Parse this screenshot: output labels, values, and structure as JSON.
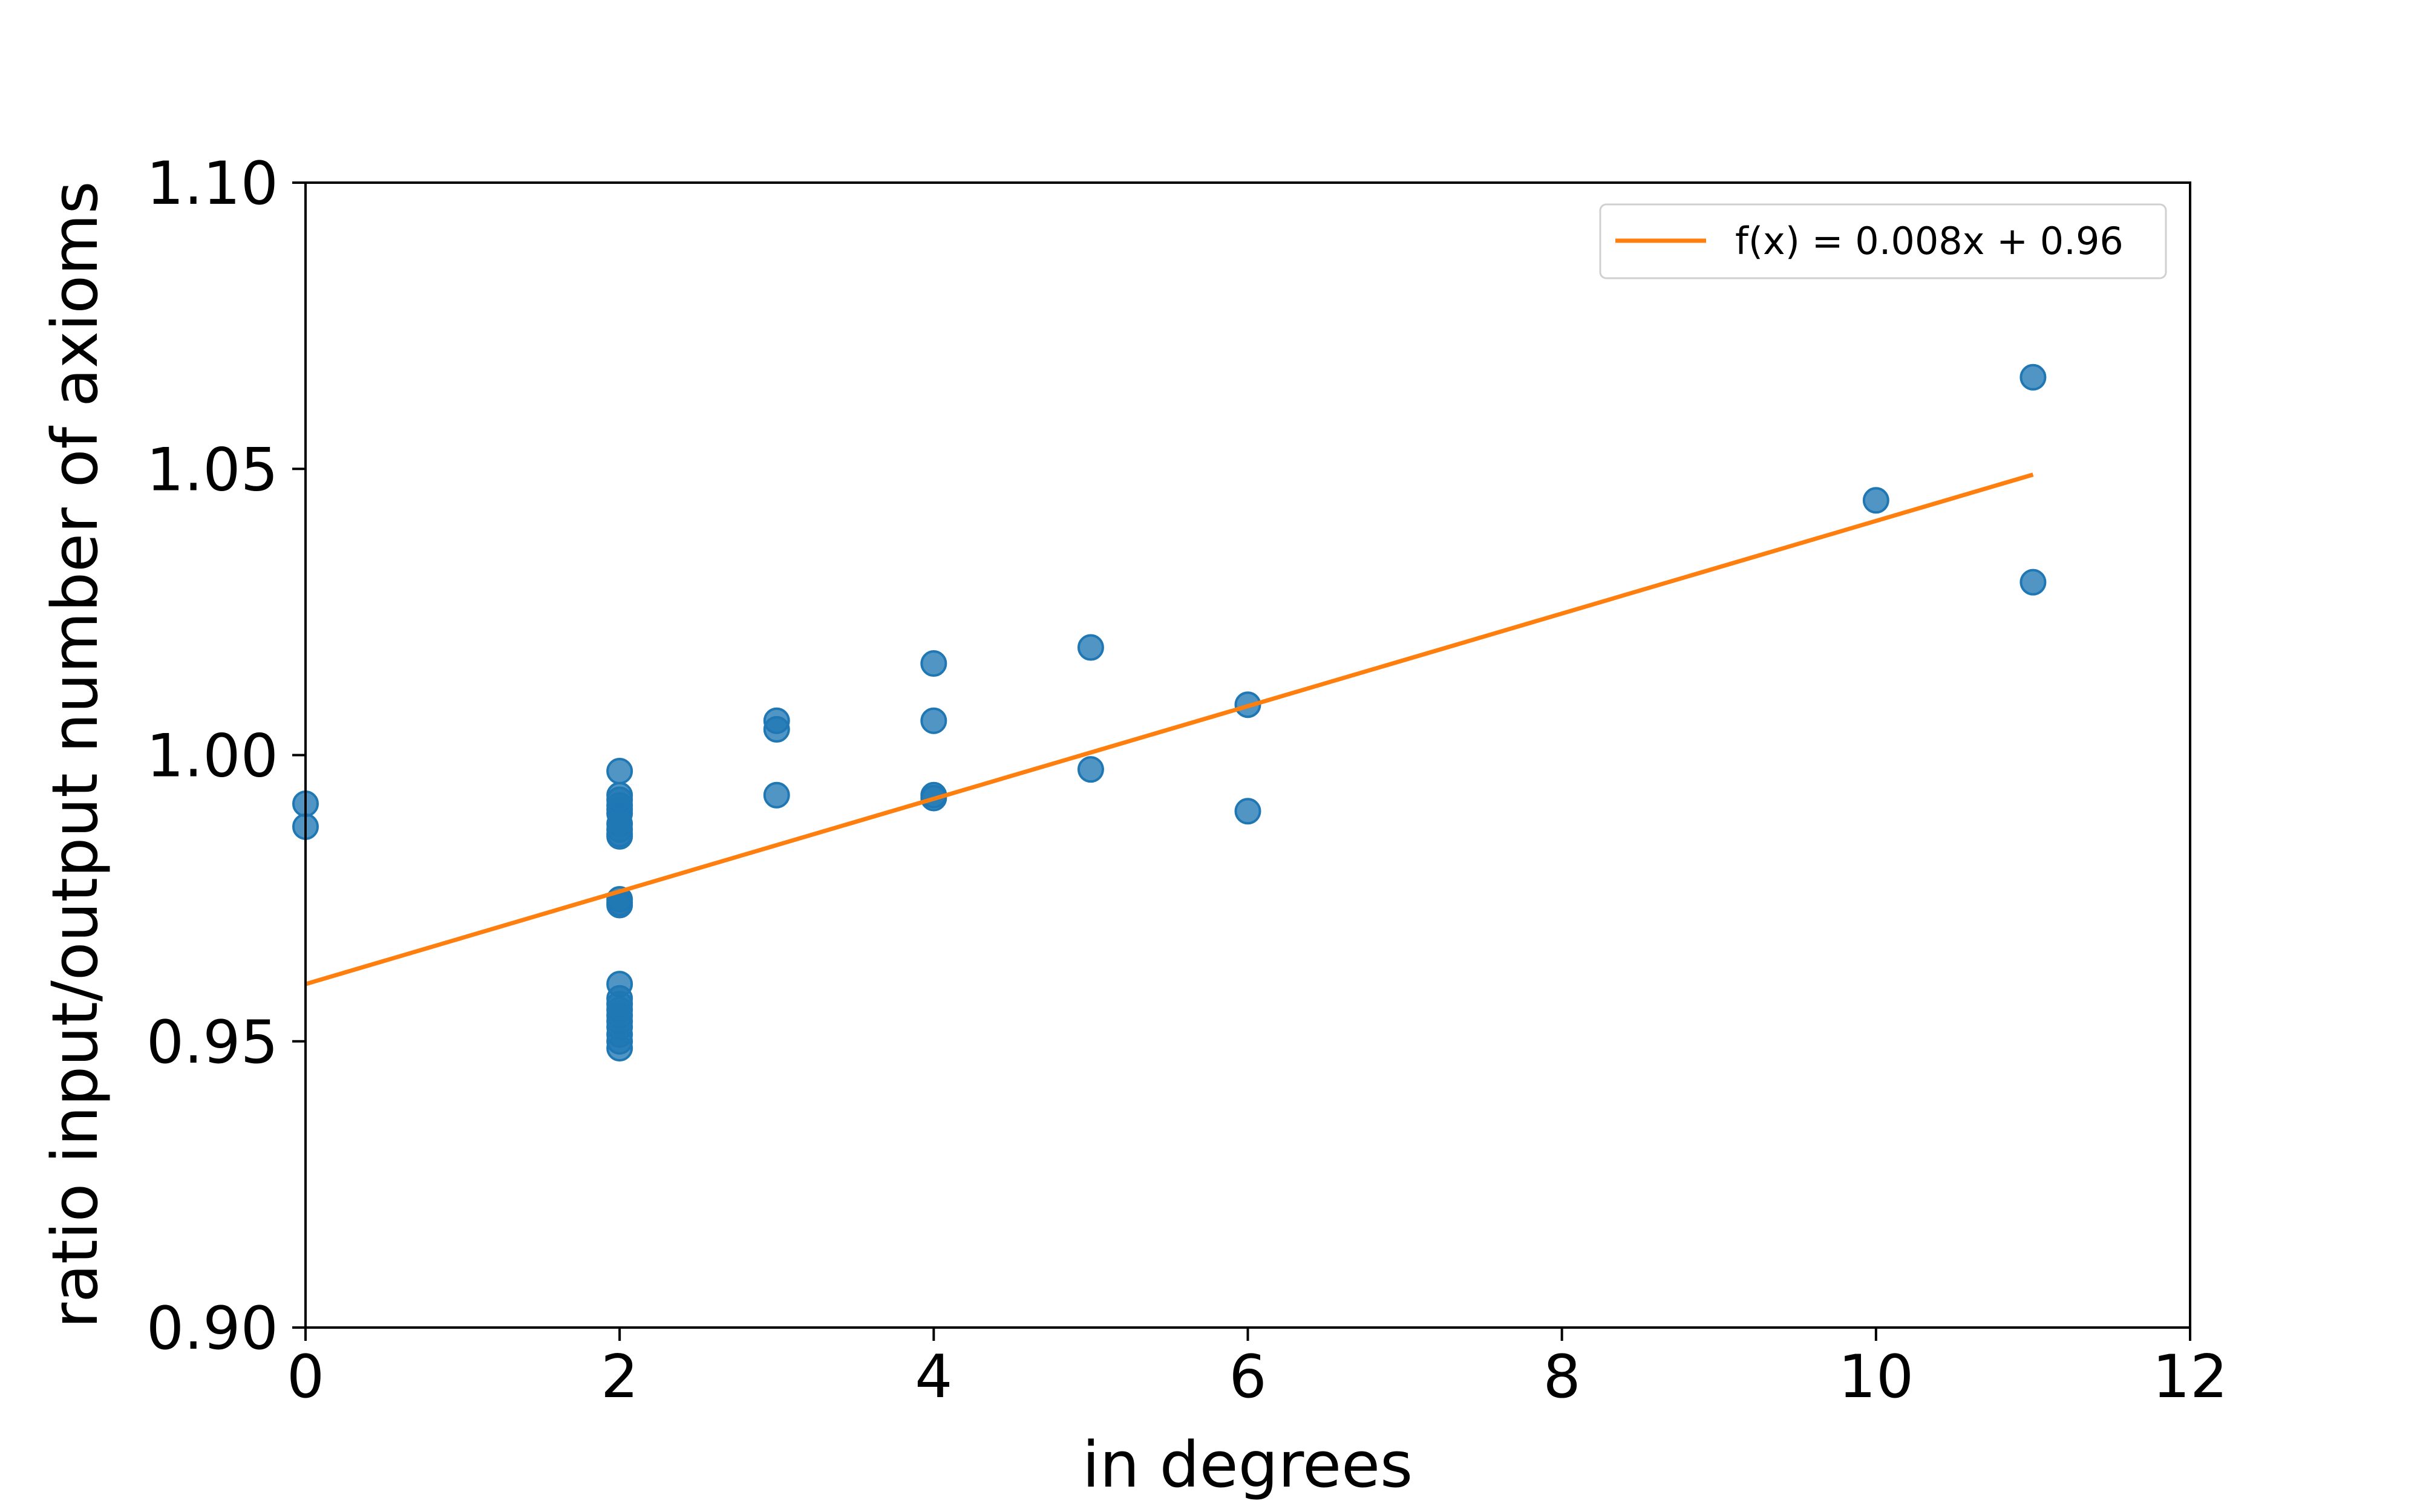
{
  "chart_data": {
    "type": "scatter",
    "title": "",
    "xlabel": "in degrees",
    "ylabel": "ratio input/output number of axioms",
    "xlim": [
      0,
      12
    ],
    "ylim": [
      0.9,
      1.1
    ],
    "xticks": [
      0,
      2,
      4,
      6,
      8,
      10,
      12
    ],
    "yticks": [
      0.9,
      0.95,
      1.0,
      1.05,
      1.1
    ],
    "xtick_labels": [
      "0",
      "2",
      "4",
      "6",
      "8",
      "10",
      "12"
    ],
    "ytick_labels": [
      "0.90",
      "0.95",
      "1.00",
      "1.05",
      "1.10"
    ],
    "grid": false,
    "legend_position": "top-right",
    "series": [
      {
        "kind": "scatter",
        "color": "#1f77b4",
        "points": [
          [
            0,
            0.9915
          ],
          [
            0,
            0.9875
          ],
          [
            2,
            0.9972
          ],
          [
            2,
            0.993
          ],
          [
            2,
            0.9922
          ],
          [
            2,
            0.9912
          ],
          [
            2,
            0.9905
          ],
          [
            2,
            0.9898
          ],
          [
            2,
            0.988
          ],
          [
            2,
            0.987
          ],
          [
            2,
            0.9862
          ],
          [
            2,
            0.9858
          ],
          [
            2,
            0.9748
          ],
          [
            2,
            0.9742
          ],
          [
            2,
            0.9738
          ],
          [
            2,
            0.96
          ],
          [
            2,
            0.9575
          ],
          [
            2,
            0.9565
          ],
          [
            2,
            0.9555
          ],
          [
            2,
            0.9545
          ],
          [
            2,
            0.9535
          ],
          [
            2,
            0.9525
          ],
          [
            2,
            0.9512
          ],
          [
            2,
            0.95
          ],
          [
            2,
            0.9488
          ],
          [
            3,
            1.006
          ],
          [
            3,
            1.0045
          ],
          [
            3,
            0.993
          ],
          [
            4,
            1.016
          ],
          [
            4,
            1.006
          ],
          [
            4,
            0.993
          ],
          [
            4,
            0.9925
          ],
          [
            5,
            1.0188
          ],
          [
            5,
            0.9975
          ],
          [
            6,
            1.0088
          ],
          [
            6,
            0.9902
          ],
          [
            10,
            1.0445
          ],
          [
            11,
            1.066
          ],
          [
            11,
            1.0302
          ]
        ]
      },
      {
        "kind": "line",
        "name": "f(x) = 0.008x + 0.96",
        "color": "#ff7f0e",
        "x": [
          0,
          11
        ],
        "y": [
          0.96,
          1.049
        ]
      }
    ]
  }
}
